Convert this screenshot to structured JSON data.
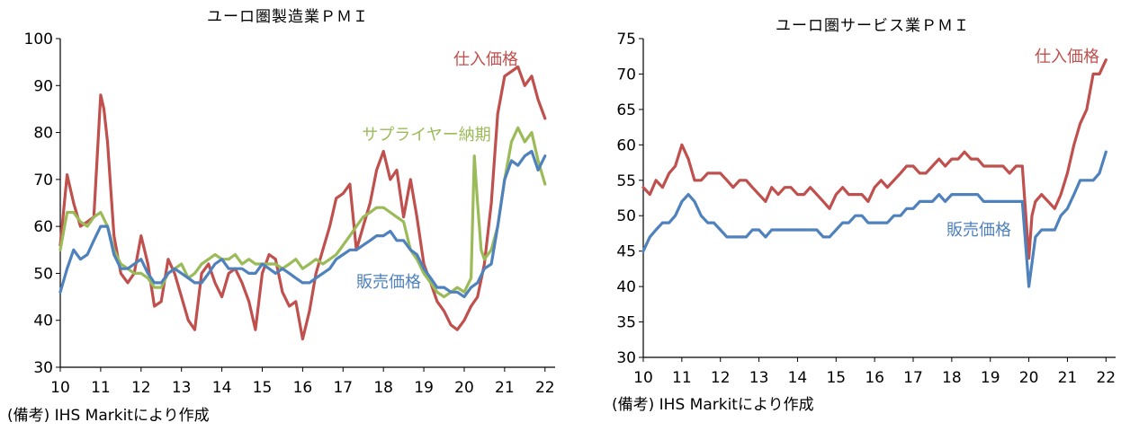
{
  "note": "(備考) IHS Markitにより作成",
  "chart_data": [
    {
      "type": "line",
      "title": "ユーロ圏製造業ＰＭＩ",
      "ylim": [
        30,
        100
      ],
      "yticks": [
        30,
        40,
        50,
        60,
        70,
        80,
        90,
        100
      ],
      "xlim": [
        2010,
        2022.25
      ],
      "xticks": [
        10,
        11,
        12,
        13,
        14,
        15,
        16,
        17,
        18,
        19,
        20,
        21,
        22
      ],
      "grid": false,
      "series": [
        {
          "name": "仕入価格",
          "color": "#c0504d",
          "x": [
            2010.0,
            2010.17,
            2010.33,
            2010.5,
            2010.67,
            2010.83,
            2011.0,
            2011.08,
            2011.17,
            2011.33,
            2011.5,
            2011.67,
            2011.83,
            2012.0,
            2012.17,
            2012.33,
            2012.5,
            2012.67,
            2012.83,
            2013.0,
            2013.17,
            2013.33,
            2013.5,
            2013.67,
            2013.83,
            2014.0,
            2014.17,
            2014.33,
            2014.5,
            2014.67,
            2014.83,
            2015.0,
            2015.17,
            2015.33,
            2015.5,
            2015.67,
            2015.83,
            2016.0,
            2016.17,
            2016.33,
            2016.5,
            2016.67,
            2016.83,
            2017.0,
            2017.17,
            2017.33,
            2017.5,
            2017.67,
            2017.83,
            2018.0,
            2018.17,
            2018.33,
            2018.5,
            2018.67,
            2018.83,
            2019.0,
            2019.17,
            2019.33,
            2019.5,
            2019.67,
            2019.83,
            2020.0,
            2020.17,
            2020.33,
            2020.5,
            2020.67,
            2020.83,
            2021.0,
            2021.17,
            2021.33,
            2021.5,
            2021.67,
            2021.83,
            2022.0
          ],
          "values": [
            56,
            71,
            65,
            60,
            61,
            62,
            88,
            85,
            78,
            58,
            50,
            48,
            50,
            58,
            52,
            43,
            44,
            53,
            50,
            45,
            40,
            38,
            50,
            52,
            48,
            45,
            50,
            51,
            48,
            44,
            38,
            50,
            54,
            53,
            46,
            43,
            44,
            36,
            42,
            50,
            55,
            60,
            66,
            67,
            69,
            55,
            60,
            65,
            72,
            76,
            70,
            72,
            62,
            70,
            62,
            52,
            48,
            44,
            42,
            39,
            38,
            40,
            43,
            45,
            52,
            65,
            84,
            92,
            93,
            94,
            90,
            92,
            87,
            83
          ]
        },
        {
          "name": "サプライヤー納期",
          "color": "#9bbb59",
          "x": [
            2010.0,
            2010.17,
            2010.33,
            2010.5,
            2010.67,
            2010.83,
            2011.0,
            2011.17,
            2011.33,
            2011.5,
            2011.67,
            2011.83,
            2012.0,
            2012.17,
            2012.33,
            2012.5,
            2012.67,
            2012.83,
            2013.0,
            2013.17,
            2013.33,
            2013.5,
            2013.67,
            2013.83,
            2014.0,
            2014.17,
            2014.33,
            2014.5,
            2014.67,
            2014.83,
            2015.0,
            2015.17,
            2015.33,
            2015.5,
            2015.67,
            2015.83,
            2016.0,
            2016.17,
            2016.33,
            2016.5,
            2016.67,
            2016.83,
            2017.0,
            2017.17,
            2017.33,
            2017.5,
            2017.67,
            2017.83,
            2018.0,
            2018.17,
            2018.33,
            2018.5,
            2018.67,
            2018.83,
            2019.0,
            2019.17,
            2019.33,
            2019.5,
            2019.67,
            2019.83,
            2020.0,
            2020.17,
            2020.25,
            2020.33,
            2020.42,
            2020.5,
            2020.67,
            2020.83,
            2021.0,
            2021.17,
            2021.33,
            2021.5,
            2021.67,
            2021.83,
            2022.0
          ],
          "values": [
            55,
            63,
            63,
            61,
            60,
            62,
            63,
            60,
            55,
            52,
            51,
            50,
            50,
            49,
            47,
            47,
            50,
            51,
            52,
            49,
            50,
            52,
            53,
            54,
            53,
            53,
            54,
            52,
            53,
            52,
            52,
            52,
            52,
            51,
            52,
            53,
            51,
            52,
            53,
            52,
            53,
            54,
            56,
            58,
            60,
            62,
            63,
            64,
            64,
            63,
            62,
            61,
            55,
            53,
            50,
            48,
            46,
            45,
            46,
            47,
            46,
            49,
            75,
            65,
            55,
            53,
            55,
            60,
            70,
            78,
            81,
            78,
            80,
            74,
            69
          ]
        },
        {
          "name": "販売価格",
          "color": "#4f81bd",
          "x": [
            2010.0,
            2010.17,
            2010.33,
            2010.5,
            2010.67,
            2010.83,
            2011.0,
            2011.17,
            2011.33,
            2011.5,
            2011.67,
            2011.83,
            2012.0,
            2012.17,
            2012.33,
            2012.5,
            2012.67,
            2012.83,
            2013.0,
            2013.17,
            2013.33,
            2013.5,
            2013.67,
            2013.83,
            2014.0,
            2014.17,
            2014.33,
            2014.5,
            2014.67,
            2014.83,
            2015.0,
            2015.17,
            2015.33,
            2015.5,
            2015.67,
            2015.83,
            2016.0,
            2016.17,
            2016.33,
            2016.5,
            2016.67,
            2016.83,
            2017.0,
            2017.17,
            2017.33,
            2017.5,
            2017.67,
            2017.83,
            2018.0,
            2018.17,
            2018.33,
            2018.5,
            2018.67,
            2018.83,
            2019.0,
            2019.17,
            2019.33,
            2019.5,
            2019.67,
            2019.83,
            2020.0,
            2020.17,
            2020.33,
            2020.5,
            2020.67,
            2020.83,
            2021.0,
            2021.17,
            2021.33,
            2021.5,
            2021.67,
            2021.83,
            2022.0
          ],
          "values": [
            46,
            51,
            55,
            53,
            54,
            57,
            60,
            60,
            54,
            51,
            51,
            52,
            53,
            50,
            48,
            48,
            50,
            51,
            50,
            49,
            48,
            48,
            50,
            52,
            53,
            51,
            51,
            51,
            50,
            50,
            52,
            51,
            50,
            51,
            50,
            49,
            48,
            48,
            49,
            50,
            51,
            53,
            54,
            55,
            55,
            56,
            57,
            58,
            58,
            59,
            57,
            57,
            55,
            54,
            51,
            49,
            47,
            47,
            46,
            46,
            45,
            47,
            48,
            51,
            52,
            60,
            70,
            74,
            73,
            75,
            76,
            72,
            75
          ]
        }
      ],
      "labels": [
        {
          "text": "仕入価格",
          "series": 0
        },
        {
          "text": "サプライヤー納期",
          "series": 1
        },
        {
          "text": "販売価格",
          "series": 2
        }
      ]
    },
    {
      "type": "line",
      "title": "ユーロ圏サービス業ＰＭＩ",
      "ylim": [
        30,
        75
      ],
      "yticks": [
        30,
        35,
        40,
        45,
        50,
        55,
        60,
        65,
        70,
        75
      ],
      "xlim": [
        2010,
        2022.25
      ],
      "xticks": [
        10,
        11,
        12,
        13,
        14,
        15,
        16,
        17,
        18,
        19,
        20,
        21,
        22
      ],
      "grid": false,
      "series": [
        {
          "name": "仕入価格",
          "color": "#c0504d",
          "x": [
            2010.0,
            2010.17,
            2010.33,
            2010.5,
            2010.67,
            2010.83,
            2011.0,
            2011.17,
            2011.33,
            2011.5,
            2011.67,
            2011.83,
            2012.0,
            2012.17,
            2012.33,
            2012.5,
            2012.67,
            2012.83,
            2013.0,
            2013.17,
            2013.33,
            2013.5,
            2013.67,
            2013.83,
            2014.0,
            2014.17,
            2014.33,
            2014.5,
            2014.67,
            2014.83,
            2015.0,
            2015.17,
            2015.33,
            2015.5,
            2015.67,
            2015.83,
            2016.0,
            2016.17,
            2016.33,
            2016.5,
            2016.67,
            2016.83,
            2017.0,
            2017.17,
            2017.33,
            2017.5,
            2017.67,
            2017.83,
            2018.0,
            2018.17,
            2018.33,
            2018.5,
            2018.67,
            2018.83,
            2019.0,
            2019.17,
            2019.33,
            2019.5,
            2019.67,
            2019.83,
            2020.0,
            2020.08,
            2020.17,
            2020.33,
            2020.5,
            2020.67,
            2020.83,
            2021.0,
            2021.17,
            2021.33,
            2021.5,
            2021.67,
            2021.83,
            2022.0
          ],
          "values": [
            54,
            53,
            55,
            54,
            56,
            57,
            60,
            58,
            55,
            55,
            56,
            56,
            56,
            55,
            54,
            55,
            55,
            54,
            53,
            52,
            54,
            53,
            54,
            54,
            53,
            53,
            54,
            53,
            52,
            51,
            53,
            54,
            53,
            53,
            53,
            52,
            54,
            55,
            54,
            55,
            56,
            57,
            57,
            56,
            56,
            57,
            58,
            57,
            58,
            58,
            59,
            58,
            58,
            57,
            57,
            57,
            57,
            56,
            57,
            57,
            44,
            50,
            52,
            53,
            52,
            51,
            53,
            56,
            60,
            63,
            65,
            70,
            70,
            72
          ]
        },
        {
          "name": "販売価格",
          "color": "#4f81bd",
          "x": [
            2010.0,
            2010.17,
            2010.33,
            2010.5,
            2010.67,
            2010.83,
            2011.0,
            2011.17,
            2011.33,
            2011.5,
            2011.67,
            2011.83,
            2012.0,
            2012.17,
            2012.33,
            2012.5,
            2012.67,
            2012.83,
            2013.0,
            2013.17,
            2013.33,
            2013.5,
            2013.67,
            2013.83,
            2014.0,
            2014.17,
            2014.33,
            2014.5,
            2014.67,
            2014.83,
            2015.0,
            2015.17,
            2015.33,
            2015.5,
            2015.67,
            2015.83,
            2016.0,
            2016.17,
            2016.33,
            2016.5,
            2016.67,
            2016.83,
            2017.0,
            2017.17,
            2017.33,
            2017.5,
            2017.67,
            2017.83,
            2018.0,
            2018.17,
            2018.33,
            2018.5,
            2018.67,
            2018.83,
            2019.0,
            2019.17,
            2019.33,
            2019.5,
            2019.67,
            2019.83,
            2020.0,
            2020.17,
            2020.33,
            2020.5,
            2020.67,
            2020.83,
            2021.0,
            2021.17,
            2021.33,
            2021.5,
            2021.67,
            2021.83,
            2022.0
          ],
          "values": [
            45,
            47,
            48,
            49,
            49,
            50,
            52,
            53,
            52,
            50,
            49,
            49,
            48,
            47,
            47,
            47,
            47,
            48,
            48,
            47,
            48,
            48,
            48,
            48,
            48,
            48,
            48,
            48,
            47,
            47,
            48,
            49,
            49,
            50,
            50,
            49,
            49,
            49,
            49,
            50,
            50,
            51,
            51,
            52,
            52,
            52,
            53,
            52,
            53,
            53,
            53,
            53,
            53,
            52,
            52,
            52,
            52,
            52,
            52,
            52,
            40,
            47,
            48,
            48,
            48,
            50,
            51,
            53,
            55,
            55,
            55,
            56,
            59
          ]
        }
      ],
      "labels": [
        {
          "text": "仕入価格",
          "series": 0
        },
        {
          "text": "販売価格",
          "series": 1
        }
      ]
    }
  ]
}
